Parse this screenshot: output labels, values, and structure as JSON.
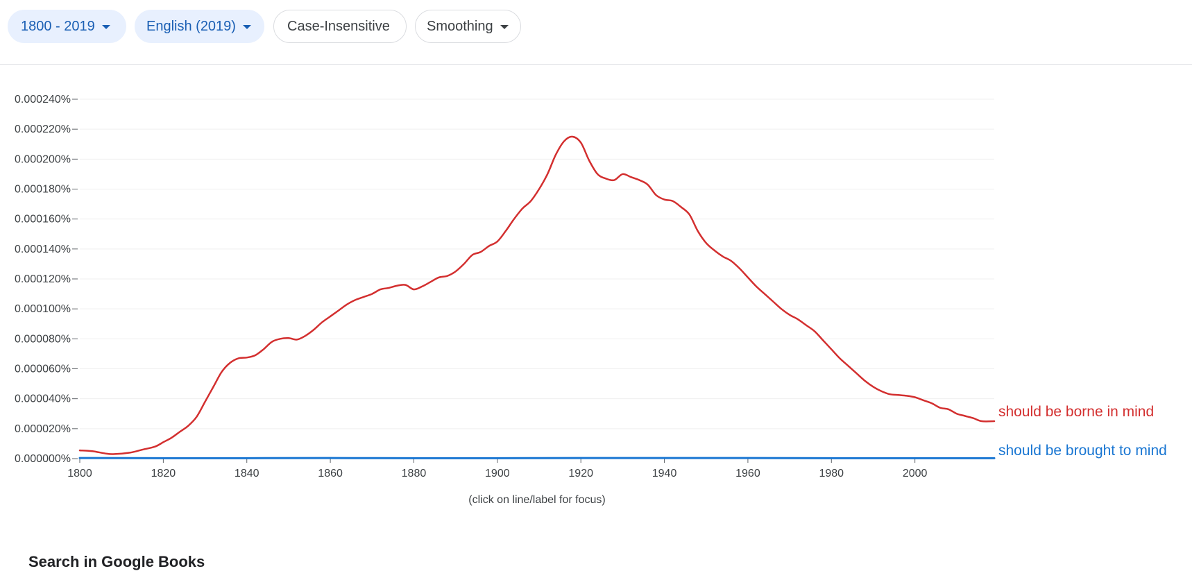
{
  "toolbar": {
    "range_label": "1800 - 2019",
    "corpus_label": "English (2019)",
    "case_label": "Case-Insensitive",
    "smoothing_label": "Smoothing"
  },
  "chart_hint": "(click on line/label for focus)",
  "books_heading": "Search in Google Books",
  "colors": {
    "series_red": "#d32f2f",
    "series_blue": "#1976d2",
    "chip_fill": "#e8f0fe",
    "chip_text": "#1a5fb4"
  },
  "chart_data": {
    "type": "line",
    "xlim": [
      1800,
      2019
    ],
    "ylim": [
      0,
      0.00024
    ],
    "x_ticks": [
      1800,
      1820,
      1840,
      1860,
      1880,
      1900,
      1920,
      1940,
      1960,
      1980,
      2000
    ],
    "y_ticks": [
      0.0,
      2e-05,
      4e-05,
      6e-05,
      8e-05,
      0.0001,
      0.00012,
      0.00014,
      0.00016,
      0.00018,
      0.0002,
      0.00022,
      0.00024
    ],
    "y_tick_labels": [
      "0.000000%",
      "0.000020%",
      "0.000040%",
      "0.000060%",
      "0.000080%",
      "0.000100%",
      "0.000120%",
      "0.000140%",
      "0.000160%",
      "0.000180%",
      "0.000200%",
      "0.000220%",
      "0.000240%"
    ],
    "grid": true,
    "legend": "right-end labels",
    "series": [
      {
        "name": "should be borne in mind",
        "color": "#d32f2f",
        "points": [
          [
            1800,
            5.5e-06
          ],
          [
            1803,
            5e-06
          ],
          [
            1806,
            3.5e-06
          ],
          [
            1808,
            3e-06
          ],
          [
            1812,
            4e-06
          ],
          [
            1815,
            6e-06
          ],
          [
            1818,
            8e-06
          ],
          [
            1820,
            1.1e-05
          ],
          [
            1822,
            1.4e-05
          ],
          [
            1824,
            1.8e-05
          ],
          [
            1826,
            2.2e-05
          ],
          [
            1828,
            2.8e-05
          ],
          [
            1830,
            3.8e-05
          ],
          [
            1832,
            4.8e-05
          ],
          [
            1834,
            5.8e-05
          ],
          [
            1836,
            6.4e-05
          ],
          [
            1838,
            6.7e-05
          ],
          [
            1840,
            6.75e-05
          ],
          [
            1842,
            6.9e-05
          ],
          [
            1844,
            7.3e-05
          ],
          [
            1846,
            7.8e-05
          ],
          [
            1848,
            8e-05
          ],
          [
            1850,
            8.05e-05
          ],
          [
            1852,
            7.95e-05
          ],
          [
            1854,
            8.2e-05
          ],
          [
            1856,
            8.6e-05
          ],
          [
            1858,
            9.1e-05
          ],
          [
            1860,
            9.5e-05
          ],
          [
            1862,
            9.9e-05
          ],
          [
            1864,
            0.000103
          ],
          [
            1866,
            0.000106
          ],
          [
            1868,
            0.000108
          ],
          [
            1870,
            0.00011
          ],
          [
            1872,
            0.000113
          ],
          [
            1874,
            0.000114
          ],
          [
            1876,
            0.0001155
          ],
          [
            1878,
            0.000116
          ],
          [
            1880,
            0.000113
          ],
          [
            1882,
            0.000115
          ],
          [
            1884,
            0.000118
          ],
          [
            1886,
            0.000121
          ],
          [
            1888,
            0.000122
          ],
          [
            1890,
            0.000125
          ],
          [
            1892,
            0.00013
          ],
          [
            1894,
            0.000136
          ],
          [
            1896,
            0.000138
          ],
          [
            1898,
            0.000142
          ],
          [
            1900,
            0.000145
          ],
          [
            1902,
            0.000152
          ],
          [
            1904,
            0.00016
          ],
          [
            1906,
            0.000167
          ],
          [
            1908,
            0.000172
          ],
          [
            1910,
            0.00018
          ],
          [
            1912,
            0.00019
          ],
          [
            1914,
            0.000203
          ],
          [
            1916,
            0.000212
          ],
          [
            1918,
            0.000215
          ],
          [
            1920,
            0.000211
          ],
          [
            1922,
            0.000199
          ],
          [
            1924,
            0.00019
          ],
          [
            1926,
            0.000187
          ],
          [
            1928,
            0.000186
          ],
          [
            1930,
            0.00019
          ],
          [
            1932,
            0.000188
          ],
          [
            1934,
            0.000186
          ],
          [
            1936,
            0.000183
          ],
          [
            1938,
            0.000176
          ],
          [
            1940,
            0.000173
          ],
          [
            1942,
            0.000172
          ],
          [
            1944,
            0.000168
          ],
          [
            1946,
            0.000163
          ],
          [
            1948,
            0.000152
          ],
          [
            1950,
            0.000144
          ],
          [
            1952,
            0.000139
          ],
          [
            1954,
            0.000135
          ],
          [
            1956,
            0.000132
          ],
          [
            1958,
            0.000127
          ],
          [
            1960,
            0.000121
          ],
          [
            1962,
            0.000115
          ],
          [
            1964,
            0.00011
          ],
          [
            1966,
            0.000105
          ],
          [
            1968,
            0.0001
          ],
          [
            1970,
            9.6e-05
          ],
          [
            1972,
            9.3e-05
          ],
          [
            1974,
            8.9e-05
          ],
          [
            1976,
            8.5e-05
          ],
          [
            1978,
            7.9e-05
          ],
          [
            1980,
            7.3e-05
          ],
          [
            1982,
            6.7e-05
          ],
          [
            1984,
            6.2e-05
          ],
          [
            1986,
            5.7e-05
          ],
          [
            1988,
            5.2e-05
          ],
          [
            1990,
            4.8e-05
          ],
          [
            1992,
            4.5e-05
          ],
          [
            1994,
            4.3e-05
          ],
          [
            1996,
            4.25e-05
          ],
          [
            1998,
            4.2e-05
          ],
          [
            2000,
            4.1e-05
          ],
          [
            2002,
            3.9e-05
          ],
          [
            2004,
            3.7e-05
          ],
          [
            2006,
            3.4e-05
          ],
          [
            2008,
            3.3e-05
          ],
          [
            2010,
            3e-05
          ],
          [
            2012,
            2.85e-05
          ],
          [
            2014,
            2.7e-05
          ],
          [
            2016,
            2.5e-05
          ],
          [
            2019,
            2.5e-05
          ]
        ]
      },
      {
        "name": "should be brought to mind",
        "color": "#1976d2",
        "points": [
          [
            1800,
            4e-07
          ],
          [
            1820,
            3e-07
          ],
          [
            1840,
            3e-07
          ],
          [
            1860,
            4e-07
          ],
          [
            1880,
            3e-07
          ],
          [
            1900,
            3e-07
          ],
          [
            1920,
            4e-07
          ],
          [
            1940,
            4e-07
          ],
          [
            1960,
            4e-07
          ],
          [
            1980,
            3e-07
          ],
          [
            2000,
            3e-07
          ],
          [
            2019,
            3e-07
          ]
        ]
      }
    ]
  }
}
